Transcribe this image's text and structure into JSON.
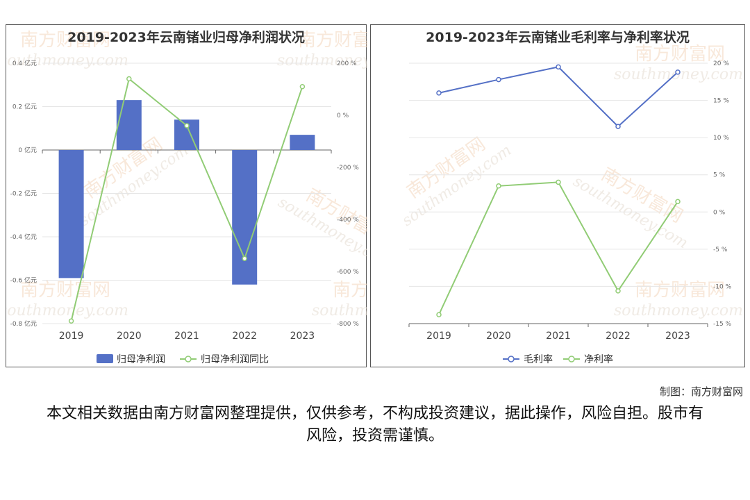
{
  "credit": "制图：南方财富网",
  "disclaimer": "本文相关数据由南方财富网整理提供，仅供参考，不构成投资建议，据此操作，风险自担。股市有风险，投资需谨慎。",
  "watermark": {
    "cn": "南方财富网",
    "en": "southmoney.com"
  },
  "chart_data": [
    {
      "type": "bar",
      "title": "2019-2023年云南锗业归母净利润状况",
      "categories": [
        "2019",
        "2020",
        "2021",
        "2022",
        "2023"
      ],
      "series": [
        {
          "name": "归母净利润",
          "type": "bar",
          "axis": "left",
          "values": [
            -0.59,
            0.23,
            0.14,
            -0.62,
            0.07
          ],
          "color": "#5470c6"
        },
        {
          "name": "归母净利润同比",
          "type": "line",
          "axis": "right",
          "values": [
            -790,
            140,
            -40,
            -550,
            110
          ],
          "color": "#91cc75"
        }
      ],
      "left_axis": {
        "min": -0.8,
        "max": 0.4,
        "ticks": [
          0.4,
          0.2,
          0,
          -0.2,
          -0.4,
          -0.6,
          -0.8
        ],
        "unit": "亿元"
      },
      "right_axis": {
        "min": -800,
        "max": 200,
        "ticks": [
          200,
          0,
          -200,
          -400,
          -600,
          -800
        ],
        "unit": "%"
      },
      "legend": "bottom-center",
      "grid": true
    },
    {
      "type": "line",
      "title": "2019-2023年云南锗业毛利率与净利率状况",
      "categories": [
        "2019",
        "2020",
        "2021",
        "2022",
        "2023"
      ],
      "series": [
        {
          "name": "毛利率",
          "values": [
            16,
            17.8,
            19.5,
            11.5,
            18.8
          ],
          "color": "#5470c6"
        },
        {
          "name": "净利率",
          "values": [
            -13.8,
            3.5,
            4,
            -10.6,
            1.4
          ],
          "color": "#91cc75"
        }
      ],
      "right_axis": {
        "min": -15,
        "max": 20,
        "ticks": [
          20,
          15,
          10,
          5,
          0,
          -5,
          -10,
          -15
        ],
        "unit": "%"
      },
      "legend": "bottom-center",
      "grid": true
    }
  ]
}
